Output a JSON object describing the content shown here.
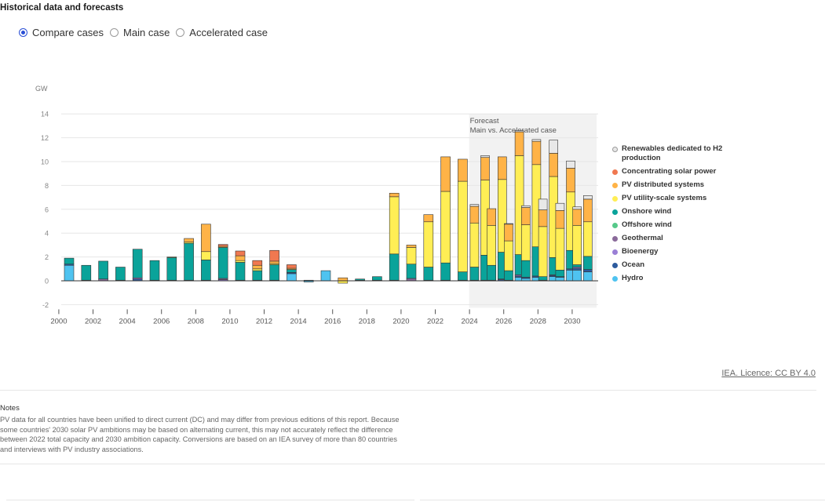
{
  "header": {
    "title": "Historical data and forecasts"
  },
  "view_options": [
    {
      "label": "Compare cases",
      "checked": true
    },
    {
      "label": "Main case",
      "checked": false
    },
    {
      "label": "Accelerated case",
      "checked": false
    }
  ],
  "colors": {
    "accent": "#2a4fd6",
    "forecast_band": "#f2f2f2"
  },
  "chart_data": {
    "type": "bar",
    "stacked": true,
    "ylabel": "GW",
    "ylim": [
      -2,
      14
    ],
    "yticks": [
      -2,
      0,
      2,
      4,
      6,
      8,
      10,
      12,
      14
    ],
    "xticks": [
      "2000",
      "2002",
      "2004",
      "2006",
      "2008",
      "2010",
      "2012",
      "2014",
      "2016",
      "2018",
      "2020",
      "2022",
      "2024",
      "2026",
      "2028",
      "2030"
    ],
    "grid": true,
    "legend_position": "right",
    "forecast_annotation": {
      "line1": "Forecast",
      "line2": "Main vs. Accelerated case",
      "from_year": 2024
    },
    "series_names": [
      "Hydro",
      "Ocean",
      "Bioenergy",
      "Geothermal",
      "Offshore wind",
      "Onshore wind",
      "PV utility-scale systems",
      "PV distributed systems",
      "Concentrating solar power",
      "Renewables dedicated to H2 production"
    ],
    "series_colors": {
      "Hydro": "#4fc3f0",
      "Ocean": "#2d5b9e",
      "Bioenergy": "#9a7fd6",
      "Geothermal": "#8a6a9a",
      "Offshore wind": "#56c98a",
      "Onshore wind": "#0aa39a",
      "PV utility-scale systems": "#ffee55",
      "PV distributed systems": "#ffb347",
      "Concentrating solar power": "#f07850",
      "Renewables dedicated to H2 production": "#e8e8e8"
    },
    "legend": [
      "Renewables dedicated to H2 production",
      "Concentrating solar power",
      "PV distributed systems",
      "PV utility-scale systems",
      "Onshore wind",
      "Offshore wind",
      "Geothermal",
      "Bioenergy",
      "Ocean",
      "Hydro"
    ],
    "bars": [
      {
        "year": 2000,
        "case": "historical",
        "values": {
          "Hydro": 1.3,
          "Ocean": 0.1,
          "Onshore wind": 0.5
        }
      },
      {
        "year": 2001,
        "case": "historical",
        "values": {
          "Hydro": 0.05,
          "Onshore wind": 1.25
        }
      },
      {
        "year": 2002,
        "case": "historical",
        "values": {
          "Geothermal": 0.15,
          "Onshore wind": 1.5
        }
      },
      {
        "year": 2003,
        "case": "historical",
        "values": {
          "Hydro": 0.05,
          "Onshore wind": 1.1
        }
      },
      {
        "year": 2004,
        "case": "historical",
        "values": {
          "Ocean": 0.15,
          "Bioenergy": 0.1,
          "Onshore wind": 2.4
        }
      },
      {
        "year": 2005,
        "case": "historical",
        "values": {
          "Hydro": 0.05,
          "Onshore wind": 1.65
        }
      },
      {
        "year": 2006,
        "case": "historical",
        "values": {
          "Hydro": 0.05,
          "Onshore wind": 1.9,
          "PV utility-scale systems": 0.05
        }
      },
      {
        "year": 2007,
        "case": "historical",
        "values": {
          "Hydro": 0.05,
          "Onshore wind": 3.1,
          "PV utility-scale systems": 0.1,
          "PV distributed systems": 0.3
        }
      },
      {
        "year": 2008,
        "case": "historical",
        "values": {
          "Hydro": 0.05,
          "Onshore wind": 1.7,
          "PV utility-scale systems": 0.7,
          "PV distributed systems": 2.3
        }
      },
      {
        "year": 2009,
        "case": "historical",
        "values": {
          "Geothermal": 0.1,
          "Bioenergy": 0.1,
          "Onshore wind": 2.6,
          "PV distributed systems": 0.1,
          "Concentrating solar power": 0.15
        }
      },
      {
        "year": 2010,
        "case": "historical",
        "values": {
          "Hydro": 0.05,
          "Onshore wind": 1.5,
          "PV utility-scale systems": 0.15,
          "PV distributed systems": 0.4,
          "Concentrating solar power": 0.4
        }
      },
      {
        "year": 2011,
        "case": "historical",
        "values": {
          "Hydro": 0.05,
          "Onshore wind": 0.8,
          "PV utility-scale systems": 0.15,
          "PV distributed systems": 0.3,
          "Concentrating solar power": 0.4
        }
      },
      {
        "year": 2012,
        "case": "historical",
        "values": {
          "Hydro": 0.05,
          "Onshore wind": 1.3,
          "PV utility-scale systems": 0.1,
          "PV distributed systems": 0.2,
          "Concentrating solar power": 0.9
        }
      },
      {
        "year": 2013,
        "case": "historical",
        "values": {
          "Hydro": 0.6,
          "Ocean": 0.1,
          "Onshore wind": 0.25,
          "PV distributed systems": 0.1,
          "Concentrating solar power": 0.3
        }
      },
      {
        "year": 2014,
        "case": "historical",
        "values": {
          "Hydro": -0.1,
          "Onshore wind": 0.05
        }
      },
      {
        "year": 2015,
        "case": "historical",
        "values": {
          "Hydro": 0.85
        }
      },
      {
        "year": 2016,
        "case": "historical",
        "values": {
          "PV utility-scale systems": -0.2,
          "PV distributed systems": 0.25
        }
      },
      {
        "year": 2017,
        "case": "historical",
        "values": {
          "Hydro": 0.05,
          "Onshore wind": 0.1
        }
      },
      {
        "year": 2018,
        "case": "historical",
        "values": {
          "Hydro": 0.05,
          "Onshore wind": 0.3
        }
      },
      {
        "year": 2019,
        "case": "historical",
        "values": {
          "Hydro": 0.05,
          "Onshore wind": 2.2,
          "PV utility-scale systems": 4.8,
          "PV distributed systems": 0.3
        }
      },
      {
        "year": 2020,
        "case": "historical",
        "values": {
          "Geothermal": 0.2,
          "Onshore wind": 1.2,
          "PV utility-scale systems": 1.4,
          "PV distributed systems": 0.2
        }
      },
      {
        "year": 2021,
        "case": "historical",
        "values": {
          "Hydro": 0.05,
          "Onshore wind": 1.1,
          "PV utility-scale systems": 3.8,
          "PV distributed systems": 0.6
        }
      },
      {
        "year": 2022,
        "case": "historical",
        "values": {
          "Hydro": 0.05,
          "Onshore wind": 1.45,
          "PV utility-scale systems": 6.0,
          "PV distributed systems": 2.9
        }
      },
      {
        "year": 2023,
        "case": "historical",
        "values": {
          "Hydro": 0.05,
          "Onshore wind": 0.7,
          "PV utility-scale systems": 7.6,
          "PV distributed systems": 1.85
        }
      },
      {
        "year": 2024,
        "case": "main",
        "values": {
          "Hydro": 0.05,
          "Onshore wind": 1.1,
          "PV utility-scale systems": 3.7,
          "PV distributed systems": 1.4,
          "Renewables dedicated to H2 production": 0.15
        }
      },
      {
        "year": 2024,
        "case": "accelerated",
        "values": {
          "Hydro": 0.05,
          "Onshore wind": 2.1,
          "PV utility-scale systems": 6.3,
          "PV distributed systems": 1.9,
          "Renewables dedicated to H2 production": 0.15
        }
      },
      {
        "year": 2025,
        "case": "main",
        "values": {
          "Hydro": 0.05,
          "Onshore wind": 1.25,
          "PV utility-scale systems": 3.35,
          "PV distributed systems": 1.4
        }
      },
      {
        "year": 2025,
        "case": "accelerated",
        "values": {
          "Ocean": 0.1,
          "Bioenergy": 0.05,
          "Onshore wind": 2.25,
          "PV utility-scale systems": 6.1,
          "PV distributed systems": 1.9
        }
      },
      {
        "year": 2026,
        "case": "main",
        "values": {
          "Hydro": 0.05,
          "Onshore wind": 0.8,
          "PV utility-scale systems": 2.5,
          "PV distributed systems": 1.4,
          "Renewables dedicated to H2 production": 0.05
        }
      },
      {
        "year": 2026,
        "case": "accelerated",
        "values": {
          "Hydro": 0.3,
          "Ocean": 0.1,
          "Bioenergy": 0.1,
          "Onshore wind": 1.7,
          "PV utility-scale systems": 8.3,
          "PV distributed systems": 2.0,
          "Renewables dedicated to H2 production": 0.1
        }
      },
      {
        "year": 2027,
        "case": "main",
        "values": {
          "Hydro": 0.2,
          "Ocean": 0.1,
          "Onshore wind": 1.4,
          "PV utility-scale systems": 3.0,
          "PV distributed systems": 1.45,
          "Renewables dedicated to H2 production": 0.15
        }
      },
      {
        "year": 2027,
        "case": "accelerated",
        "values": {
          "Hydro": 0.3,
          "Ocean": 0.1,
          "Onshore wind": 2.45,
          "PV utility-scale systems": 6.9,
          "PV distributed systems": 1.95,
          "Renewables dedicated to H2 production": 0.15
        }
      },
      {
        "year": 2028,
        "case": "main",
        "values": {
          "Hydro": 0.05,
          "Onshore wind": 0.3,
          "PV utility-scale systems": 4.2,
          "PV distributed systems": 1.4,
          "Renewables dedicated to H2 production": 0.9
        }
      },
      {
        "year": 2028,
        "case": "accelerated",
        "values": {
          "Hydro": 0.35,
          "Ocean": 0.1,
          "Bioenergy": 0.05,
          "Onshore wind": 1.45,
          "PV utility-scale systems": 6.8,
          "PV distributed systems": 1.95,
          "Renewables dedicated to H2 production": 1.1
        }
      },
      {
        "year": 2029,
        "case": "main",
        "values": {
          "Hydro": 0.3,
          "Ocean": 0.05,
          "Onshore wind": 0.55,
          "PV utility-scale systems": 3.5,
          "PV distributed systems": 1.5,
          "Renewables dedicated to H2 production": 0.6
        }
      },
      {
        "year": 2029,
        "case": "accelerated",
        "values": {
          "Hydro": 0.9,
          "Ocean": 0.1,
          "Onshore wind": 1.55,
          "PV utility-scale systems": 4.9,
          "PV distributed systems": 2.0,
          "Renewables dedicated to H2 production": 0.6
        }
      },
      {
        "year": 2030,
        "case": "main",
        "values": {
          "Hydro": 0.9,
          "Ocean": 0.15,
          "Bioenergy": 0.1,
          "Onshore wind": 0.2,
          "PV utility-scale systems": 3.3,
          "PV distributed systems": 1.35,
          "Renewables dedicated to H2 production": 0.2
        }
      },
      {
        "year": 2030,
        "case": "accelerated",
        "values": {
          "Hydro": 0.75,
          "Ocean": 0.2,
          "Onshore wind": 1.1,
          "PV utility-scale systems": 2.9,
          "PV distributed systems": 1.9,
          "Renewables dedicated to H2 production": 0.3
        }
      }
    ]
  },
  "credit": {
    "text": "IEA. Licence: CC BY 4.0"
  },
  "notes": {
    "title": "Notes",
    "body": "PV data for all countries have been unified to direct current (DC) and may differ from previous editions of this report. Because some countries' 2030 solar PV ambitions may be based on alternating current, this may not accurately reflect the difference between 2022 total capacity and 2030 ambition capacity. Conversions are based on an IEA survey of more than 80 countries and interviews with PV industry associations."
  }
}
